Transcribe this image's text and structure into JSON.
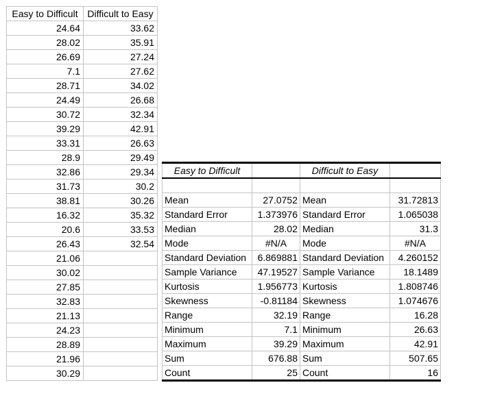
{
  "data_table": {
    "headers": [
      "Easy to Difficult",
      "Difficult to Easy"
    ],
    "col1": [
      "24.64",
      "28.02",
      "26.69",
      "7.1",
      "28.71",
      "24.49",
      "30.72",
      "39.29",
      "33.31",
      "28.9",
      "32.86",
      "31.73",
      "38.81",
      "16.32",
      "20.6",
      "26.43",
      "21.06",
      "30.02",
      "27.85",
      "32.83",
      "21.13",
      "24.23",
      "28.89",
      "21.96",
      "30.29"
    ],
    "col2": [
      "33.62",
      "35.91",
      "27.24",
      "27.62",
      "34.02",
      "26.68",
      "32.34",
      "42.91",
      "26.63",
      "29.49",
      "29.34",
      "30.2",
      "30.26",
      "35.32",
      "33.53",
      "32.54"
    ]
  },
  "stats_table": {
    "header1": "Easy to Difficult",
    "header2": "Difficult to Easy",
    "rows": [
      {
        "label": "Mean",
        "v1": "27.0752",
        "v2": "31.72813"
      },
      {
        "label": "Standard Error",
        "v1": "1.373976",
        "v2": "1.065038"
      },
      {
        "label": "Median",
        "v1": "28.02",
        "v2": "31.3"
      },
      {
        "label": "Mode",
        "v1": "#N/A",
        "v2": "#N/A"
      },
      {
        "label": "Standard Deviation",
        "v1": "6.869881",
        "v2": "4.260152"
      },
      {
        "label": "Sample Variance",
        "v1": "47.19527",
        "v2": "18.1489"
      },
      {
        "label": "Kurtosis",
        "v1": "1.956773",
        "v2": "1.808746"
      },
      {
        "label": "Skewness",
        "v1": "-0.81184",
        "v2": "1.074676"
      },
      {
        "label": "Range",
        "v1": "32.19",
        "v2": "16.28"
      },
      {
        "label": "Minimum",
        "v1": "7.1",
        "v2": "26.63"
      },
      {
        "label": "Maximum",
        "v1": "39.29",
        "v2": "42.91"
      },
      {
        "label": "Sum",
        "v1": "676.88",
        "v2": "507.65"
      },
      {
        "label": "Count",
        "v1": "25",
        "v2": "16"
      }
    ]
  },
  "colors": {
    "background": "#ffffff",
    "gridline": "#c3c3c3",
    "heavy_border": "#000000",
    "text": "#000000"
  }
}
